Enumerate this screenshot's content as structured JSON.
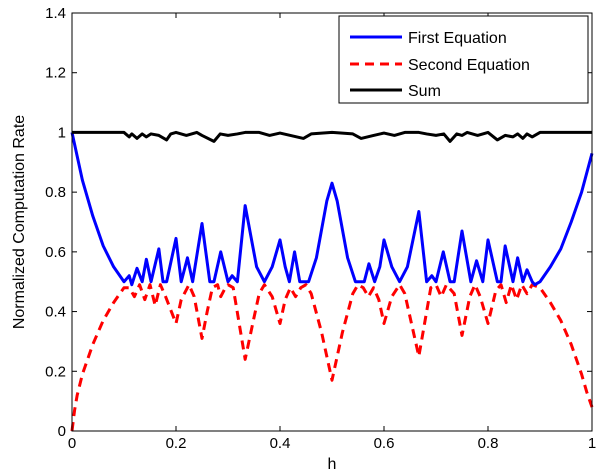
{
  "chart_data": {
    "type": "line",
    "xlabel": "h",
    "ylabel": "Normalized Computation Rate",
    "xlim": [
      0,
      1
    ],
    "ylim": [
      0,
      1.4
    ],
    "xticks": [
      "0",
      "0.2",
      "0.4",
      "0.6",
      "0.8",
      "1"
    ],
    "yticks": [
      "0",
      "0.2",
      "0.4",
      "0.6",
      "0.8",
      "1",
      "1.2",
      "1.4"
    ],
    "grid": false,
    "legend_position": "top-right",
    "series": [
      {
        "name": "First Equation",
        "color": "#0000ff",
        "style": "solid",
        "points": [
          [
            0,
            1.0
          ],
          [
            0.02,
            0.84
          ],
          [
            0.04,
            0.72
          ],
          [
            0.06,
            0.62
          ],
          [
            0.08,
            0.55
          ],
          [
            0.1,
            0.5
          ],
          [
            0.11,
            0.52
          ],
          [
            0.115,
            0.49
          ],
          [
            0.125,
            0.545
          ],
          [
            0.135,
            0.5
          ],
          [
            0.143,
            0.575
          ],
          [
            0.152,
            0.5
          ],
          [
            0.167,
            0.61
          ],
          [
            0.175,
            0.5
          ],
          [
            0.182,
            0.5
          ],
          [
            0.2,
            0.645
          ],
          [
            0.21,
            0.5
          ],
          [
            0.222,
            0.58
          ],
          [
            0.232,
            0.5
          ],
          [
            0.25,
            0.695
          ],
          [
            0.265,
            0.5
          ],
          [
            0.273,
            0.5
          ],
          [
            0.286,
            0.6
          ],
          [
            0.3,
            0.5
          ],
          [
            0.308,
            0.52
          ],
          [
            0.318,
            0.5
          ],
          [
            0.333,
            0.755
          ],
          [
            0.355,
            0.55
          ],
          [
            0.37,
            0.5
          ],
          [
            0.385,
            0.55
          ],
          [
            0.4,
            0.64
          ],
          [
            0.41,
            0.55
          ],
          [
            0.418,
            0.5
          ],
          [
            0.428,
            0.6
          ],
          [
            0.438,
            0.5
          ],
          [
            0.444,
            0.5
          ],
          [
            0.455,
            0.5
          ],
          [
            0.47,
            0.58
          ],
          [
            0.49,
            0.77
          ],
          [
            0.5,
            0.83
          ],
          [
            0.51,
            0.77
          ],
          [
            0.53,
            0.58
          ],
          [
            0.545,
            0.5
          ],
          [
            0.556,
            0.5
          ],
          [
            0.562,
            0.5
          ],
          [
            0.571,
            0.56
          ],
          [
            0.582,
            0.5
          ],
          [
            0.592,
            0.55
          ],
          [
            0.6,
            0.64
          ],
          [
            0.615,
            0.55
          ],
          [
            0.63,
            0.5
          ],
          [
            0.645,
            0.55
          ],
          [
            0.667,
            0.735
          ],
          [
            0.682,
            0.5
          ],
          [
            0.692,
            0.52
          ],
          [
            0.7,
            0.5
          ],
          [
            0.714,
            0.6
          ],
          [
            0.727,
            0.5
          ],
          [
            0.735,
            0.5
          ],
          [
            0.75,
            0.67
          ],
          [
            0.767,
            0.5
          ],
          [
            0.778,
            0.57
          ],
          [
            0.79,
            0.5
          ],
          [
            0.8,
            0.64
          ],
          [
            0.818,
            0.5
          ],
          [
            0.825,
            0.5
          ],
          [
            0.833,
            0.62
          ],
          [
            0.848,
            0.5
          ],
          [
            0.857,
            0.58
          ],
          [
            0.867,
            0.5
          ],
          [
            0.875,
            0.54
          ],
          [
            0.885,
            0.5
          ],
          [
            0.89,
            0.49
          ],
          [
            0.9,
            0.5
          ],
          [
            0.92,
            0.55
          ],
          [
            0.94,
            0.61
          ],
          [
            0.96,
            0.7
          ],
          [
            0.98,
            0.8
          ],
          [
            1,
            0.93
          ]
        ]
      },
      {
        "name": "Second Equation",
        "color": "#ff0000",
        "style": "dashed",
        "points": [
          [
            0,
            0.0
          ],
          [
            0.005,
            0.07
          ],
          [
            0.01,
            0.12
          ],
          [
            0.02,
            0.19
          ],
          [
            0.04,
            0.29
          ],
          [
            0.06,
            0.37
          ],
          [
            0.08,
            0.43
          ],
          [
            0.1,
            0.48
          ],
          [
            0.11,
            0.48
          ],
          [
            0.12,
            0.45
          ],
          [
            0.13,
            0.49
          ],
          [
            0.14,
            0.44
          ],
          [
            0.15,
            0.49
          ],
          [
            0.16,
            0.42
          ],
          [
            0.17,
            0.49
          ],
          [
            0.18,
            0.45
          ],
          [
            0.2,
            0.36
          ],
          [
            0.21,
            0.44
          ],
          [
            0.225,
            0.49
          ],
          [
            0.235,
            0.45
          ],
          [
            0.25,
            0.31
          ],
          [
            0.26,
            0.4
          ],
          [
            0.27,
            0.48
          ],
          [
            0.28,
            0.49
          ],
          [
            0.286,
            0.45
          ],
          [
            0.295,
            0.48
          ],
          [
            0.3,
            0.49
          ],
          [
            0.31,
            0.48
          ],
          [
            0.333,
            0.24
          ],
          [
            0.35,
            0.38
          ],
          [
            0.36,
            0.46
          ],
          [
            0.37,
            0.49
          ],
          [
            0.385,
            0.45
          ],
          [
            0.4,
            0.36
          ],
          [
            0.41,
            0.44
          ],
          [
            0.42,
            0.48
          ],
          [
            0.43,
            0.45
          ],
          [
            0.44,
            0.48
          ],
          [
            0.45,
            0.49
          ],
          [
            0.46,
            0.46
          ],
          [
            0.48,
            0.33
          ],
          [
            0.5,
            0.17
          ],
          [
            0.52,
            0.33
          ],
          [
            0.54,
            0.46
          ],
          [
            0.55,
            0.49
          ],
          [
            0.56,
            0.48
          ],
          [
            0.57,
            0.45
          ],
          [
            0.58,
            0.48
          ],
          [
            0.59,
            0.44
          ],
          [
            0.6,
            0.36
          ],
          [
            0.615,
            0.45
          ],
          [
            0.63,
            0.49
          ],
          [
            0.64,
            0.46
          ],
          [
            0.667,
            0.25
          ],
          [
            0.69,
            0.48
          ],
          [
            0.7,
            0.49
          ],
          [
            0.71,
            0.45
          ],
          [
            0.72,
            0.49
          ],
          [
            0.735,
            0.46
          ],
          [
            0.75,
            0.32
          ],
          [
            0.765,
            0.45
          ],
          [
            0.775,
            0.49
          ],
          [
            0.785,
            0.45
          ],
          [
            0.8,
            0.36
          ],
          [
            0.815,
            0.47
          ],
          [
            0.825,
            0.49
          ],
          [
            0.835,
            0.43
          ],
          [
            0.845,
            0.49
          ],
          [
            0.855,
            0.44
          ],
          [
            0.865,
            0.49
          ],
          [
            0.875,
            0.46
          ],
          [
            0.885,
            0.49
          ],
          [
            0.9,
            0.48
          ],
          [
            0.92,
            0.43
          ],
          [
            0.94,
            0.37
          ],
          [
            0.96,
            0.29
          ],
          [
            0.98,
            0.19
          ],
          [
            0.99,
            0.13
          ],
          [
            1,
            0.08
          ]
        ]
      },
      {
        "name": "Sum",
        "color": "#000000",
        "style": "solid",
        "points": [
          [
            0,
            1.0
          ],
          [
            0.1,
            1.0
          ],
          [
            0.11,
            0.985
          ],
          [
            0.115,
            0.995
          ],
          [
            0.125,
            0.98
          ],
          [
            0.135,
            0.995
          ],
          [
            0.143,
            0.985
          ],
          [
            0.152,
            0.995
          ],
          [
            0.167,
            0.99
          ],
          [
            0.182,
            0.975
          ],
          [
            0.19,
            0.995
          ],
          [
            0.2,
            1.0
          ],
          [
            0.22,
            0.99
          ],
          [
            0.24,
            1.0
          ],
          [
            0.25,
            0.99
          ],
          [
            0.273,
            0.97
          ],
          [
            0.285,
            0.995
          ],
          [
            0.3,
            0.99
          ],
          [
            0.318,
            0.995
          ],
          [
            0.333,
            1.0
          ],
          [
            0.36,
            1.0
          ],
          [
            0.38,
            0.99
          ],
          [
            0.4,
            0.998
          ],
          [
            0.42,
            0.99
          ],
          [
            0.445,
            0.98
          ],
          [
            0.46,
            0.995
          ],
          [
            0.5,
            1.0
          ],
          [
            0.54,
            0.995
          ],
          [
            0.556,
            0.98
          ],
          [
            0.58,
            0.99
          ],
          [
            0.6,
            0.998
          ],
          [
            0.62,
            0.99
          ],
          [
            0.64,
            1.0
          ],
          [
            0.667,
            1.0
          ],
          [
            0.682,
            0.995
          ],
          [
            0.7,
            0.99
          ],
          [
            0.715,
            0.995
          ],
          [
            0.727,
            0.97
          ],
          [
            0.74,
            0.995
          ],
          [
            0.75,
            0.99
          ],
          [
            0.76,
            1.0
          ],
          [
            0.78,
            0.99
          ],
          [
            0.8,
            1.0
          ],
          [
            0.818,
            0.975
          ],
          [
            0.833,
            0.99
          ],
          [
            0.848,
            0.985
          ],
          [
            0.857,
            0.995
          ],
          [
            0.867,
            0.98
          ],
          [
            0.875,
            0.995
          ],
          [
            0.885,
            0.985
          ],
          [
            0.9,
            1.0
          ],
          [
            1,
            1.0
          ]
        ]
      }
    ]
  }
}
